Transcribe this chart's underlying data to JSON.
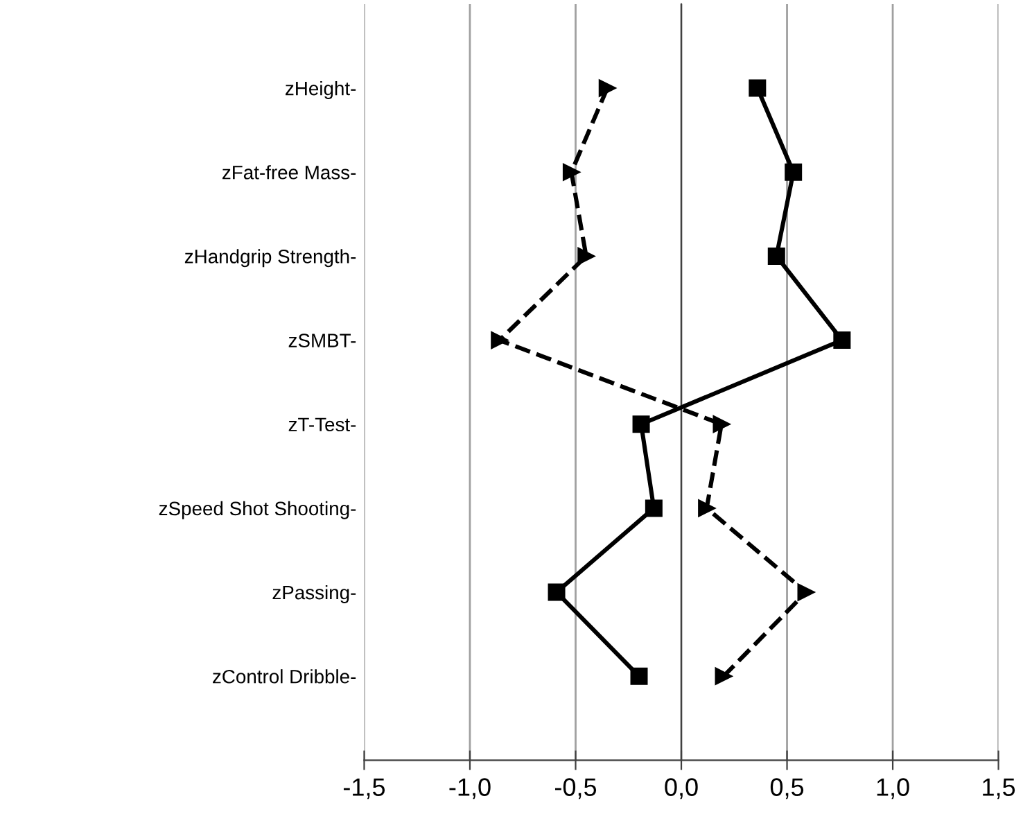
{
  "chart_data": {
    "type": "line",
    "orientation": "horizontal",
    "categories": [
      "zHeight-",
      "zFat-free Mass-",
      "zHandgrip Strength-",
      "zSMBT-",
      "zT-Test-",
      "zSpeed Shot Shooting-",
      "zPassing-",
      "zControl Dribble-"
    ],
    "series": [
      {
        "color": "#000000",
        "marker": "square",
        "line_style": "solid",
        "values": [
          0.36,
          0.53,
          0.45,
          0.76,
          -0.19,
          -0.13,
          -0.59,
          -0.2
        ]
      },
      {
        "color": "#000000",
        "marker": "triangle",
        "line_style": "dashed",
        "values": [
          -0.35,
          -0.52,
          -0.45,
          -0.86,
          0.19,
          0.12,
          0.59,
          0.2
        ]
      }
    ],
    "xlim": [
      -1.5,
      1.5
    ],
    "xticks": [
      {
        "value": -1.5,
        "label": "-1,5"
      },
      {
        "value": -1.0,
        "label": "-1,0"
      },
      {
        "value": -0.5,
        "label": "-0,5"
      },
      {
        "value": 0,
        "label": "0,0"
      },
      {
        "value": 0.5,
        "label": "0,5"
      },
      {
        "value": 1.0,
        "label": "1,0"
      },
      {
        "value": 1.5,
        "label": "1,5"
      }
    ],
    "grid": "x",
    "legend": false
  }
}
